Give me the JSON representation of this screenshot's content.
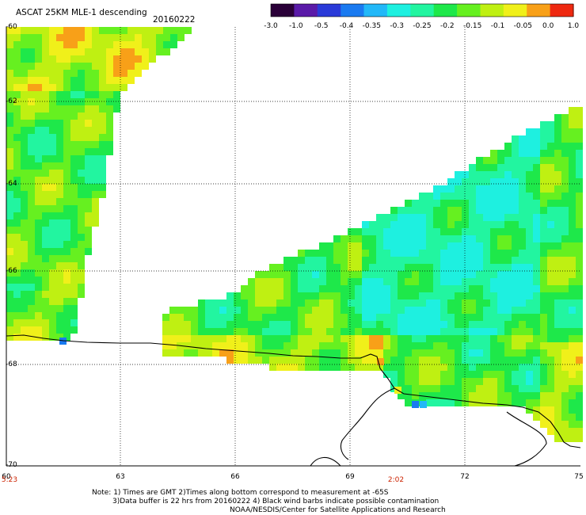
{
  "header": {
    "title": "ASCAT 25KM MLE-1 descending",
    "date": "20160222"
  },
  "colorbar": {
    "labels": [
      "-3.0",
      "-1.0",
      "-0.5",
      "-0.4",
      "-0.35",
      "-0.3",
      "-0.25",
      "-0.2",
      "-0.15",
      "-0.1",
      "-0.05",
      "0.0",
      "1.0"
    ],
    "colors": [
      "#2a0038",
      "#5a1aa8",
      "#2a3ad8",
      "#1a7af0",
      "#22b8f8",
      "#1ef0e0",
      "#22f5a0",
      "#1ee84a",
      "#66f020",
      "#bff012",
      "#f0f01a",
      "#f8a018",
      "#ee2810"
    ]
  },
  "axes": {
    "lat_labels": [
      "-60",
      "-62",
      "-64",
      "-66",
      "-68",
      "-70"
    ],
    "lon_labels": [
      "60",
      "63",
      "66",
      "69",
      "72",
      "75"
    ],
    "time_labels": [
      "5:23",
      "2:02"
    ]
  },
  "notes": {
    "line1": "Note: 1) Times are GMT 2)Times along bottom correspond to measurement at -65S",
    "line2": "3)Data buffer is 22 hrs from 20160222 4) Black wind barbs indicate possible contamination",
    "line3": "NOAA/NESDIS/Center for Satellite Applications and Research"
  }
}
